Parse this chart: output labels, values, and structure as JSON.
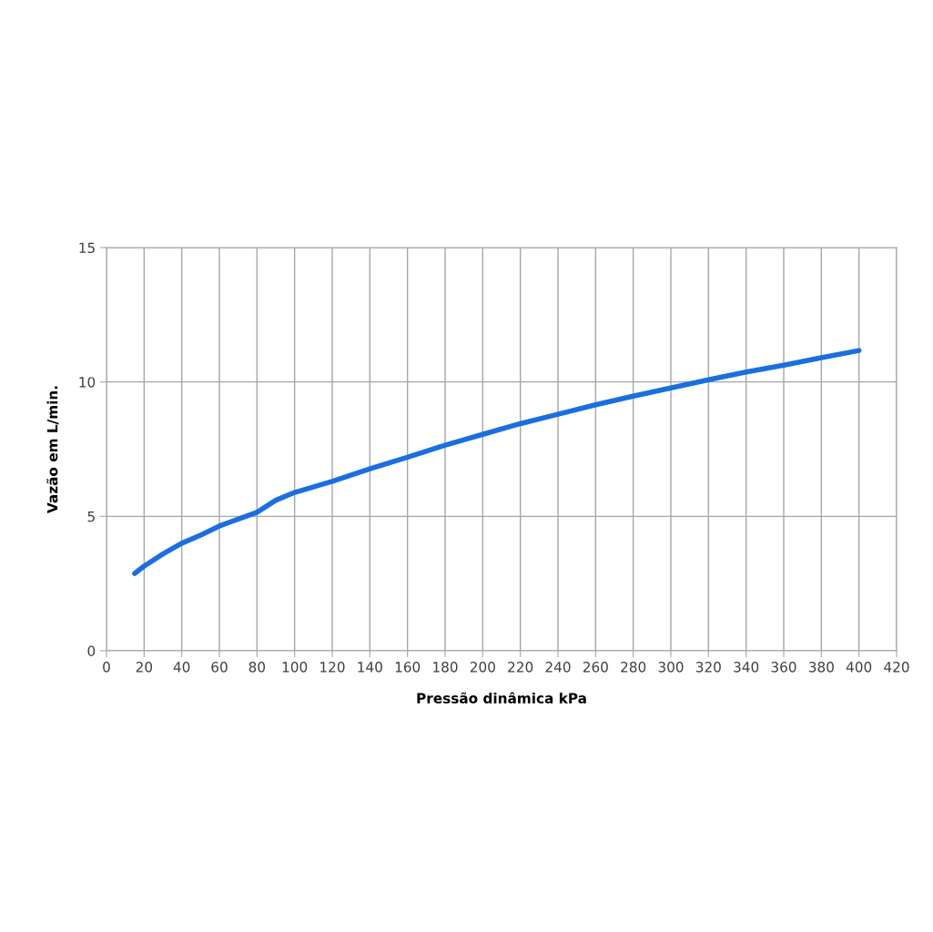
{
  "chart_data": {
    "type": "line",
    "xlabel": "Pressão dinâmica kPa",
    "ylabel": "Vazão em L/min.",
    "x": [
      15,
      20,
      30,
      40,
      50,
      60,
      70,
      80,
      90,
      100,
      120,
      140,
      160,
      180,
      200,
      220,
      240,
      260,
      280,
      300,
      320,
      340,
      360,
      380,
      400
    ],
    "series": [
      {
        "color": "#1a6fe0",
        "values": [
          2.88,
          3.15,
          3.6,
          4.0,
          4.3,
          4.64,
          4.9,
          5.15,
          5.6,
          5.89,
          6.3,
          6.77,
          7.2,
          7.65,
          8.05,
          8.45,
          8.8,
          9.15,
          9.47,
          9.78,
          10.08,
          10.37,
          10.62,
          10.9,
          11.17
        ]
      }
    ],
    "xlim": [
      0,
      420
    ],
    "xticks": [
      0,
      20,
      40,
      60,
      80,
      100,
      120,
      140,
      160,
      180,
      200,
      220,
      240,
      260,
      280,
      300,
      320,
      340,
      360,
      380,
      400,
      420
    ],
    "ylim": [
      0,
      15
    ],
    "yticks": [
      0,
      5,
      10,
      15
    ],
    "grid": true,
    "marker": "none",
    "line_style": "solid"
  }
}
